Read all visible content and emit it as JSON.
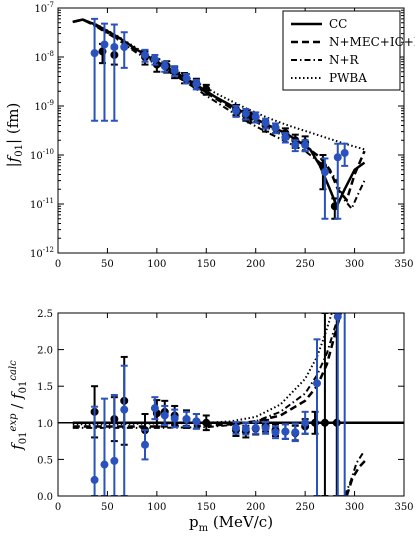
{
  "chart_data": [
    {
      "type": "line",
      "panel": "top",
      "yscale": "log",
      "xlim": [
        0,
        350
      ],
      "ylim": [
        1e-12,
        1e-07
      ],
      "xticks": [
        0,
        50,
        100,
        150,
        200,
        250,
        300,
        350
      ],
      "xtick_labels": [
        "0",
        "50",
        "100",
        "150",
        "200",
        "250",
        "300",
        "350"
      ],
      "yticks": [
        1e-12,
        1e-11,
        1e-10,
        1e-09,
        1e-08,
        1e-07
      ],
      "ytick_base": "10",
      "ytick_exps": [
        "-12",
        "-11",
        "-10",
        "-9",
        "-8",
        "-7"
      ],
      "ylabel": "|f01| (fm)",
      "legend_position": "top-right",
      "series": [
        {
          "name": "CC",
          "style": "solid",
          "x": [
            15,
            25,
            40,
            60,
            80,
            100,
            130,
            160,
            190,
            210,
            230,
            245,
            255,
            265,
            275,
            282,
            290,
            300,
            310
          ],
          "y": [
            5.2e-08,
            5.8e-08,
            4.4e-08,
            2.6e-08,
            1.4e-08,
            8e-09,
            3.6e-09,
            1.5e-09,
            7e-10,
            4.3e-10,
            2.8e-10,
            1.8e-10,
            1.3e-10,
            6e-11,
            2e-11,
            9e-12,
            2e-11,
            5e-11,
            7e-11
          ]
        },
        {
          "name": "N+MEC+IC+R",
          "style": "dashed",
          "x": [
            15,
            25,
            40,
            60,
            80,
            100,
            130,
            160,
            190,
            210,
            230,
            250,
            265,
            275,
            283,
            292,
            300,
            310
          ],
          "y": [
            5.2e-08,
            5.8e-08,
            4.2e-08,
            2.4e-08,
            1.3e-08,
            7.5e-09,
            3.3e-09,
            1.4e-09,
            6e-10,
            3.8e-10,
            2.4e-10,
            1.5e-10,
            9e-11,
            5e-11,
            2e-11,
            1.2e-11,
            4e-11,
            1.2e-10
          ]
        },
        {
          "name": "N+R",
          "style": "dashdot",
          "x": [
            15,
            25,
            40,
            60,
            80,
            100,
            130,
            160,
            190,
            210,
            230,
            250,
            265,
            280,
            290,
            297,
            303,
            310
          ],
          "y": [
            5.2e-08,
            5.8e-08,
            4e-08,
            2.3e-08,
            1.2e-08,
            7e-09,
            3e-09,
            1.2e-09,
            5e-10,
            3e-10,
            1.9e-10,
            1.2e-10,
            7e-11,
            3.5e-11,
            1.2e-11,
            8e-12,
            1.5e-11,
            3e-11
          ]
        },
        {
          "name": "PWBA",
          "style": "dotted",
          "x": [
            15,
            25,
            40,
            60,
            80,
            100,
            130,
            160,
            190,
            210,
            230,
            250,
            270,
            290,
            310
          ],
          "y": [
            5.2e-08,
            5.8e-08,
            4.5e-08,
            2.7e-08,
            1.5e-08,
            8.5e-09,
            4e-09,
            1.8e-09,
            9e-10,
            6e-10,
            4.2e-10,
            3.1e-10,
            2.3e-10,
            1.7e-10,
            1.3e-10
          ]
        }
      ],
      "black_points": {
        "x": [
          45,
          57,
          88,
          100,
          110,
          118,
          128,
          140,
          150,
          180,
          190,
          195,
          210,
          220,
          230,
          240,
          250,
          268,
          280
        ],
        "y": [
          1.3e-08,
          1.1e-08,
          1e-08,
          7e-09,
          6.5e-09,
          5e-09,
          3.8e-09,
          2.9e-09,
          2.2e-09,
          8.5e-10,
          6.5e-10,
          6e-10,
          4e-10,
          3.6e-10,
          2.8e-10,
          2e-10,
          1.8e-10,
          6e-11,
          9e-12
        ],
        "err_lo": [
          5.5e-09,
          4e-09,
          3e-09,
          2e-09,
          1.7e-09,
          1.3e-09,
          9e-10,
          7e-10,
          5e-10,
          2e-10,
          1.5e-10,
          1.4e-10,
          1e-10,
          8e-11,
          7e-11,
          6e-11,
          6e-11,
          4e-11,
          4e-12
        ],
        "err_hi": [
          5.5e-09,
          4e-09,
          3e-09,
          2e-09,
          1.7e-09,
          1.3e-09,
          9e-10,
          7e-10,
          5e-10,
          2e-10,
          1.5e-10,
          1.4e-10,
          1e-10,
          8e-11,
          7e-11,
          6e-11,
          6e-11,
          4e-11,
          4e-12
        ]
      },
      "blue_points": {
        "x": [
          37,
          47,
          57,
          67,
          88,
          98,
          108,
          118,
          130,
          140,
          180,
          190,
          200,
          210,
          220,
          230,
          240,
          250,
          270,
          283,
          290
        ],
        "y": [
          1.2e-08,
          1.8e-08,
          1.6e-08,
          1.6e-08,
          1.1e-08,
          9e-09,
          6.5e-09,
          5.3e-09,
          3.7e-09,
          2.8e-09,
          8e-10,
          7e-10,
          6e-10,
          4.5e-10,
          3.6e-10,
          2.3e-10,
          1.6e-10,
          1.6e-10,
          4.5e-11,
          9e-11,
          1.1e-10
        ],
        "err_lo": [
          1.15e-08,
          1.75e-08,
          1.55e-08,
          1e-08,
          3e-09,
          2e-09,
          1.5e-09,
          1.2e-09,
          8e-10,
          6e-10,
          2e-10,
          1.7e-10,
          1.4e-10,
          1e-10,
          8e-11,
          5e-11,
          4e-11,
          4e-11,
          4e-11,
          8.5e-11,
          5e-11
        ],
        "err_hi": [
          4.8e-08,
          3e-08,
          3e-08,
          1.6e-08,
          3e-09,
          2e-09,
          1.5e-09,
          1.2e-09,
          8e-10,
          6e-10,
          2e-10,
          1.7e-10,
          1.4e-10,
          1e-10,
          8e-11,
          5e-11,
          4e-11,
          4e-11,
          4e-11,
          8e-11,
          6e-11
        ]
      }
    },
    {
      "type": "line",
      "panel": "bottom",
      "xlim": [
        0,
        350
      ],
      "ylim": [
        0.0,
        2.5
      ],
      "xticks": [
        0,
        50,
        100,
        150,
        200,
        250,
        300,
        350
      ],
      "xtick_labels": [
        "0",
        "50",
        "100",
        "150",
        "200",
        "250",
        "300",
        "350"
      ],
      "yticks": [
        0.0,
        0.5,
        1.0,
        1.5,
        2.0,
        2.5
      ],
      "ytick_labels": [
        "0.0",
        "0.5",
        "1.0",
        "1.5",
        "2.0",
        "2.5"
      ],
      "xlabel": "pm (MeV/c)",
      "ylabel": "f01^exp / f01^calc",
      "reference_line": 1.0,
      "series": [
        {
          "name": "CC",
          "style": "solid",
          "x": [
            15,
            350
          ],
          "y": [
            1.0,
            1.0
          ]
        },
        {
          "name": "N+MEC+IC+R",
          "style": "dashed",
          "x": [
            15,
            50,
            100,
            150,
            175,
            200,
            225,
            250,
            262,
            272,
            280,
            286
          ],
          "y": [
            0.95,
            0.95,
            0.95,
            0.96,
            0.98,
            1.02,
            1.1,
            1.3,
            1.5,
            1.8,
            2.2,
            2.5
          ]
        },
        {
          "name": "N+R",
          "style": "dashdot",
          "x": [
            15,
            50,
            100,
            150,
            175,
            200,
            225,
            250,
            262,
            272,
            280,
            285
          ],
          "y": [
            0.93,
            0.93,
            0.93,
            0.94,
            0.97,
            1.02,
            1.15,
            1.4,
            1.65,
            1.95,
            2.3,
            2.5
          ]
        },
        {
          "name": "PWBA",
          "style": "dotted",
          "x": [
            15,
            50,
            100,
            150,
            175,
            200,
            225,
            250,
            262,
            270,
            277
          ],
          "y": [
            0.98,
            0.98,
            0.99,
            1.0,
            1.02,
            1.08,
            1.25,
            1.6,
            1.9,
            2.2,
            2.5
          ]
        },
        {
          "name": "N+MEC+IC+R tail",
          "style": "dashed",
          "x": [
            292,
            298,
            305,
            312
          ],
          "y": [
            0.0,
            0.25,
            0.4,
            0.5
          ]
        },
        {
          "name": "N+R tail",
          "style": "dashdot",
          "x": [
            290,
            296,
            302,
            309
          ],
          "y": [
            0.0,
            0.2,
            0.45,
            0.6
          ]
        }
      ],
      "black_points": {
        "x": [
          37,
          57,
          67,
          88,
          100,
          108,
          118,
          130,
          140,
          150,
          180,
          190,
          200,
          210,
          220,
          230,
          240,
          250,
          260,
          270,
          282
        ],
        "y": [
          1.15,
          1.05,
          1.3,
          0.9,
          1.13,
          1.15,
          1.1,
          1.05,
          1.02,
          1.0,
          0.9,
          0.88,
          0.92,
          0.96,
          0.9,
          0.88,
          0.86,
          0.95,
          1.0,
          1.0,
          1.0
        ],
        "err_lo": [
          0.35,
          0.3,
          0.6,
          0.22,
          0.18,
          0.15,
          0.13,
          0.12,
          0.1,
          0.1,
          0.08,
          0.08,
          0.08,
          0.08,
          0.08,
          0.1,
          0.1,
          0.1,
          0.15,
          1.0,
          1.0
        ],
        "err_hi": [
          0.35,
          0.3,
          0.6,
          0.22,
          0.18,
          0.15,
          0.13,
          0.12,
          0.1,
          0.1,
          0.08,
          0.08,
          0.08,
          0.08,
          0.08,
          0.1,
          0.1,
          0.1,
          0.15,
          1.5,
          1.5
        ]
      },
      "blue_points": {
        "x": [
          37,
          47,
          57,
          67,
          88,
          98,
          108,
          118,
          130,
          140,
          180,
          190,
          200,
          210,
          220,
          230,
          240,
          250,
          262,
          283,
          290
        ],
        "y": [
          0.22,
          0.43,
          0.48,
          1.18,
          0.7,
          1.2,
          1.1,
          1.06,
          1.05,
          1.02,
          0.93,
          0.92,
          0.93,
          0.93,
          0.87,
          0.88,
          0.87,
          1.0,
          1.54,
          2.45,
          2.55
        ],
        "err_lo": [
          0.22,
          0.43,
          0.48,
          1.18,
          0.2,
          0.15,
          0.13,
          0.12,
          0.1,
          0.1,
          0.08,
          0.08,
          0.08,
          0.08,
          0.08,
          0.1,
          0.12,
          0.15,
          1.54,
          2.45,
          2.55
        ],
        "err_hi": [
          1.0,
          0.9,
          0.9,
          0.6,
          0.2,
          0.15,
          0.13,
          0.12,
          0.1,
          0.1,
          0.08,
          0.08,
          0.08,
          0.08,
          0.08,
          0.1,
          0.12,
          0.15,
          0.6,
          0.5,
          0.5
        ]
      }
    }
  ],
  "colors": {
    "theory": "#000000",
    "black_points": "#000000",
    "blue_points": "#2a52be",
    "background": "#ffffff"
  }
}
